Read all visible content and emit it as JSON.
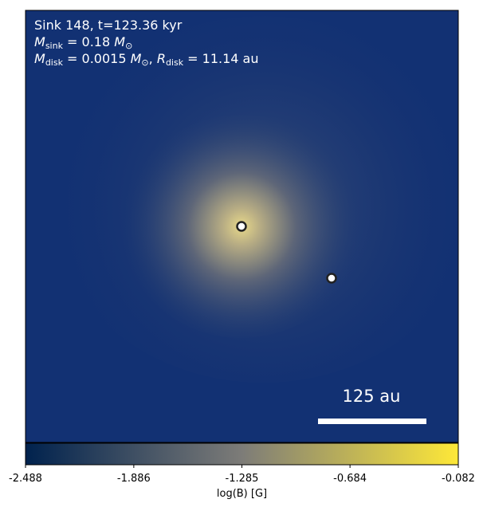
{
  "chart_data": {
    "type": "image",
    "annotations": [
      [
        {
          "text": "Sink 148, t=123.36 kyr"
        }
      ],
      [
        {
          "text": "M",
          "italic": true
        },
        {
          "text": "sink",
          "sub": true
        },
        {
          "text": " = 0.18 "
        },
        {
          "text": "M",
          "italic": true
        },
        {
          "text": "⊙",
          "sub": true
        }
      ],
      [
        {
          "text": "M",
          "italic": true
        },
        {
          "text": "disk",
          "sub": true
        },
        {
          "text": " = 0.0015 "
        },
        {
          "text": "M",
          "italic": true
        },
        {
          "text": "⊙",
          "sub": true
        },
        {
          "text": ", "
        },
        {
          "text": "R",
          "italic": true
        },
        {
          "text": "disk",
          "sub": true
        },
        {
          "text": " = 11.14 au"
        }
      ]
    ],
    "scalebar_label": "125 au",
    "colorbar": {
      "label": "log(B) [G]",
      "clim": [
        -2.488,
        -0.082
      ],
      "ticks": [
        -2.488,
        -1.886,
        -1.285,
        -0.684,
        -0.082
      ],
      "colormap": [
        "#00224e",
        "#7d7c78",
        "#fee838"
      ]
    }
  }
}
